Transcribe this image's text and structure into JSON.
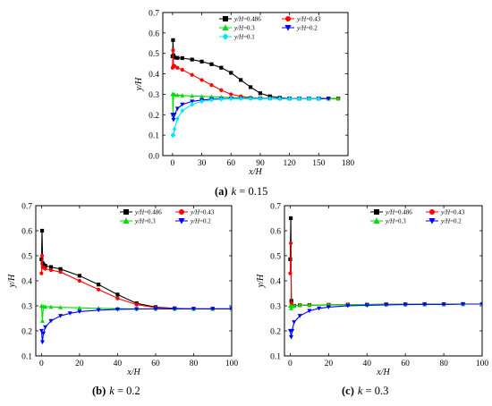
{
  "captions": {
    "a_label": "(a)",
    "a_k": "k",
    "a_value": " = 0.15",
    "b_label": "(b)",
    "b_k": "k",
    "b_value": " = 0.2",
    "c_label": "(c)",
    "c_k": "k",
    "c_value": " = 0.3"
  },
  "chart_data": [
    {
      "type": "line",
      "panel": "a",
      "xlabel": "x/H",
      "ylabel": "y/H",
      "xlim": [
        -10,
        180
      ],
      "ylim": [
        0.0,
        0.7
      ],
      "xticks": [
        0,
        30,
        60,
        90,
        120,
        150,
        180
      ],
      "yticks": [
        0.0,
        0.1,
        0.2,
        0.3,
        0.4,
        0.5,
        0.6,
        0.7
      ],
      "grid": false,
      "legend": "top-right",
      "series": [
        {
          "name": "y/H=0.486",
          "color": "#000000",
          "marker": "square",
          "x": [
            0,
            0.5,
            1,
            2,
            5,
            10,
            20,
            30,
            40,
            50,
            60,
            70,
            80,
            90,
            100,
            110,
            120,
            130,
            140,
            150,
            160,
            170
          ],
          "y": [
            0.486,
            0.565,
            0.49,
            0.48,
            0.478,
            0.477,
            0.47,
            0.46,
            0.447,
            0.43,
            0.405,
            0.37,
            0.335,
            0.305,
            0.29,
            0.283,
            0.28,
            0.279,
            0.279,
            0.279,
            0.279,
            0.279
          ]
        },
        {
          "name": "y/H=0.43",
          "color": "#ff0000",
          "marker": "circle",
          "x": [
            0,
            0.5,
            1,
            2,
            5,
            10,
            20,
            30,
            40,
            50,
            60,
            70,
            80,
            90,
            100,
            110,
            120,
            130,
            140,
            150,
            160,
            170
          ],
          "y": [
            0.43,
            0.515,
            0.44,
            0.438,
            0.43,
            0.42,
            0.395,
            0.37,
            0.345,
            0.32,
            0.3,
            0.29,
            0.284,
            0.281,
            0.28,
            0.279,
            0.279,
            0.279,
            0.279,
            0.279,
            0.279,
            0.279
          ]
        },
        {
          "name": "y/H=0.3",
          "color": "#00dd00",
          "marker": "triangle-up",
          "x": [
            0,
            0.5,
            1,
            2,
            5,
            10,
            20,
            30,
            40,
            50,
            60,
            70,
            80,
            90,
            100,
            110,
            120,
            130,
            140,
            150,
            160,
            170
          ],
          "y": [
            0.3,
            0.2,
            0.3,
            0.298,
            0.296,
            0.294,
            0.292,
            0.29,
            0.288,
            0.286,
            0.284,
            0.283,
            0.282,
            0.281,
            0.28,
            0.28,
            0.279,
            0.279,
            0.279,
            0.279,
            0.279,
            0.279
          ]
        },
        {
          "name": "y/H=0.2",
          "color": "#0000ff",
          "marker": "triangle-down",
          "x": [
            0,
            1,
            2,
            5,
            10,
            20,
            30,
            40,
            50,
            60,
            70,
            80,
            90,
            100,
            110,
            120,
            130,
            140,
            150,
            160
          ],
          "y": [
            0.2,
            0.175,
            0.2,
            0.23,
            0.25,
            0.265,
            0.272,
            0.276,
            0.278,
            0.279,
            0.279,
            0.279,
            0.279,
            0.279,
            0.279,
            0.279,
            0.279,
            0.279,
            0.279,
            0.279
          ]
        },
        {
          "name": "y/H=0.1",
          "color": "#00e5ff",
          "marker": "diamond",
          "x": [
            0,
            1,
            2,
            5,
            10,
            20,
            30,
            40,
            50,
            60,
            70,
            80,
            90,
            100,
            110,
            120,
            130,
            140,
            150
          ],
          "y": [
            0.1,
            0.1,
            0.13,
            0.18,
            0.22,
            0.25,
            0.265,
            0.272,
            0.276,
            0.278,
            0.279,
            0.279,
            0.279,
            0.279,
            0.279,
            0.279,
            0.279,
            0.279,
            0.279
          ]
        }
      ]
    },
    {
      "type": "line",
      "panel": "b",
      "xlabel": "x/H",
      "ylabel": "y/H",
      "xlim": [
        -3,
        100
      ],
      "ylim": [
        0.1,
        0.7
      ],
      "xticks": [
        0,
        20,
        40,
        60,
        80,
        100
      ],
      "yticks": [
        0.1,
        0.2,
        0.3,
        0.4,
        0.5,
        0.6,
        0.7
      ],
      "grid": false,
      "legend": "top-right",
      "series": [
        {
          "name": "y/H=0.486",
          "color": "#000000",
          "marker": "square",
          "x": [
            0,
            0.3,
            0.6,
            1,
            2,
            5,
            10,
            20,
            30,
            40,
            50,
            60,
            70,
            80,
            90,
            100
          ],
          "y": [
            0.486,
            0.6,
            0.47,
            0.465,
            0.46,
            0.455,
            0.447,
            0.42,
            0.385,
            0.345,
            0.31,
            0.295,
            0.29,
            0.288,
            0.288,
            0.288
          ]
        },
        {
          "name": "y/H=0.43",
          "color": "#ff0000",
          "marker": "circle",
          "x": [
            0,
            0.3,
            0.6,
            1,
            2,
            5,
            10,
            20,
            30,
            40,
            50,
            60,
            70,
            80,
            90,
            100
          ],
          "y": [
            0.43,
            0.5,
            0.455,
            0.452,
            0.448,
            0.443,
            0.435,
            0.4,
            0.365,
            0.33,
            0.305,
            0.293,
            0.289,
            0.288,
            0.288,
            0.288
          ]
        },
        {
          "name": "y/H=0.3",
          "color": "#00dd00",
          "marker": "triangle-up",
          "x": [
            0,
            0.5,
            1,
            2,
            5,
            10,
            20,
            30,
            40,
            50,
            60,
            70,
            80,
            90,
            100
          ],
          "y": [
            0.3,
            0.24,
            0.298,
            0.297,
            0.296,
            0.294,
            0.292,
            0.29,
            0.289,
            0.288,
            0.288,
            0.288,
            0.288,
            0.288,
            0.288
          ]
        },
        {
          "name": "y/H=0.2",
          "color": "#0000ff",
          "marker": "triangle-down",
          "x": [
            0,
            0.5,
            1,
            2,
            5,
            10,
            15,
            20,
            30,
            40,
            50,
            60,
            70,
            80,
            90,
            100
          ],
          "y": [
            0.2,
            0.155,
            0.19,
            0.215,
            0.24,
            0.26,
            0.27,
            0.277,
            0.283,
            0.286,
            0.287,
            0.288,
            0.288,
            0.288,
            0.288,
            0.288
          ]
        }
      ]
    },
    {
      "type": "line",
      "panel": "c",
      "xlabel": "x/H",
      "ylabel": "y/H",
      "xlim": [
        -3,
        100
      ],
      "ylim": [
        0.1,
        0.7
      ],
      "xticks": [
        0,
        20,
        40,
        60,
        80,
        100
      ],
      "yticks": [
        0.1,
        0.2,
        0.3,
        0.4,
        0.5,
        0.6,
        0.7
      ],
      "grid": false,
      "legend": "top-right",
      "series": [
        {
          "name": "y/H=0.486",
          "color": "#000000",
          "marker": "square",
          "x": [
            0,
            0.3,
            0.6,
            1,
            2,
            5,
            10,
            20,
            30,
            40,
            50,
            60,
            70,
            80,
            90,
            100
          ],
          "y": [
            0.486,
            0.65,
            0.32,
            0.3,
            0.3,
            0.302,
            0.303,
            0.304,
            0.305,
            0.305,
            0.306,
            0.306,
            0.306,
            0.306,
            0.307,
            0.307
          ]
        },
        {
          "name": "y/H=0.43",
          "color": "#ff0000",
          "marker": "circle",
          "x": [
            0,
            0.3,
            0.6,
            1,
            2,
            5,
            10,
            20,
            30,
            40,
            50,
            60,
            70,
            80,
            90,
            100
          ],
          "y": [
            0.43,
            0.55,
            0.31,
            0.3,
            0.3,
            0.302,
            0.303,
            0.304,
            0.305,
            0.305,
            0.306,
            0.306,
            0.306,
            0.306,
            0.307,
            0.307
          ]
        },
        {
          "name": "y/H=0.3",
          "color": "#00dd00",
          "marker": "triangle-up",
          "x": [
            0,
            0.5,
            1,
            2,
            5,
            10,
            20,
            30,
            40,
            50,
            60,
            70,
            80,
            90,
            100
          ],
          "y": [
            0.3,
            0.29,
            0.298,
            0.3,
            0.302,
            0.303,
            0.304,
            0.305,
            0.305,
            0.306,
            0.306,
            0.306,
            0.306,
            0.307,
            0.307
          ]
        },
        {
          "name": "y/H=0.2",
          "color": "#0000ff",
          "marker": "triangle-down",
          "x": [
            0,
            0.5,
            1,
            2,
            5,
            10,
            15,
            20,
            30,
            40,
            50,
            60,
            70,
            80,
            90,
            100
          ],
          "y": [
            0.2,
            0.175,
            0.2,
            0.235,
            0.26,
            0.28,
            0.29,
            0.295,
            0.3,
            0.302,
            0.304,
            0.305,
            0.306,
            0.306,
            0.307,
            0.307
          ]
        }
      ]
    }
  ]
}
